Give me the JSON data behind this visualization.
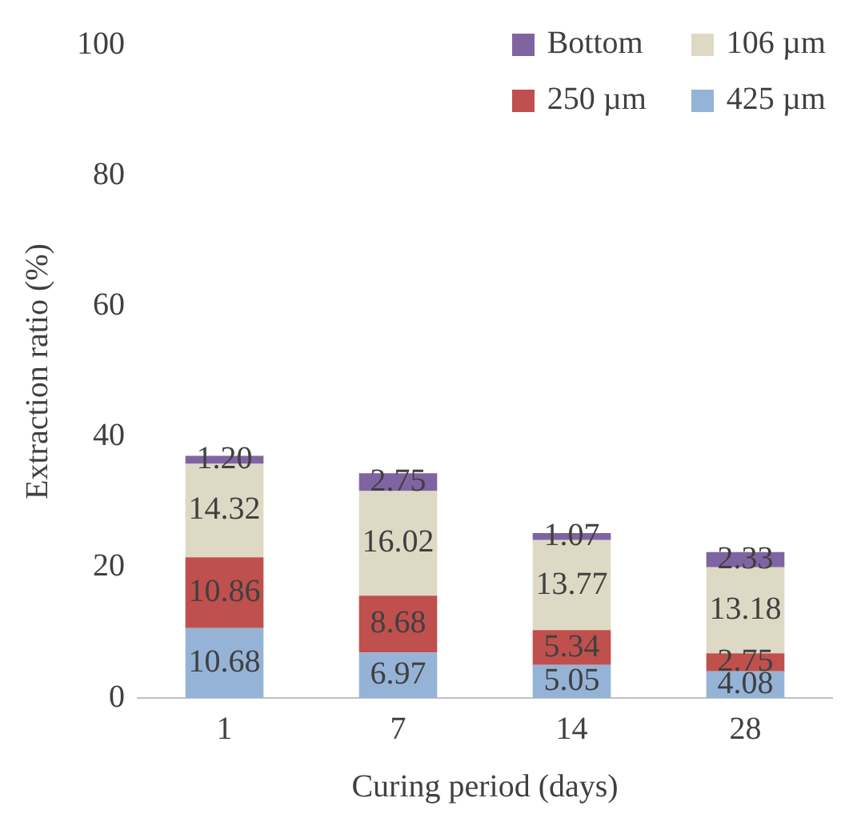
{
  "chart_data": {
    "type": "bar",
    "stacked": true,
    "xlabel": "Curing period (days)",
    "ylabel": "Extraction ratio (%)",
    "categories": [
      "1",
      "7",
      "14",
      "28"
    ],
    "ylim": [
      0,
      100
    ],
    "yticks": [
      0,
      20,
      40,
      60,
      80,
      100
    ],
    "grid": false,
    "legend": "top right",
    "series": [
      {
        "name": "425 µm",
        "color": "#95b3d7",
        "values": [
          10.68,
          6.97,
          5.05,
          4.08
        ],
        "value_labels": [
          "10.68",
          "6.97",
          "5.05",
          "4.08"
        ]
      },
      {
        "name": "250 µm",
        "color": "#c0504d",
        "values": [
          10.86,
          8.68,
          5.34,
          2.75
        ],
        "value_labels": [
          "10.86",
          "8.68",
          "5.34",
          "2.75"
        ]
      },
      {
        "name": "106 µm",
        "color": "#ddd9c4",
        "values": [
          14.32,
          16.02,
          13.77,
          13.18
        ],
        "value_labels": [
          "14.32",
          "16.02",
          "13.77",
          "13.18"
        ]
      },
      {
        "name": "Bottom",
        "color": "#8064a2",
        "values": [
          1.2,
          2.75,
          1.07,
          2.33
        ],
        "value_labels": [
          "1.20",
          "2.75",
          "1.07",
          "2.33"
        ]
      }
    ]
  }
}
